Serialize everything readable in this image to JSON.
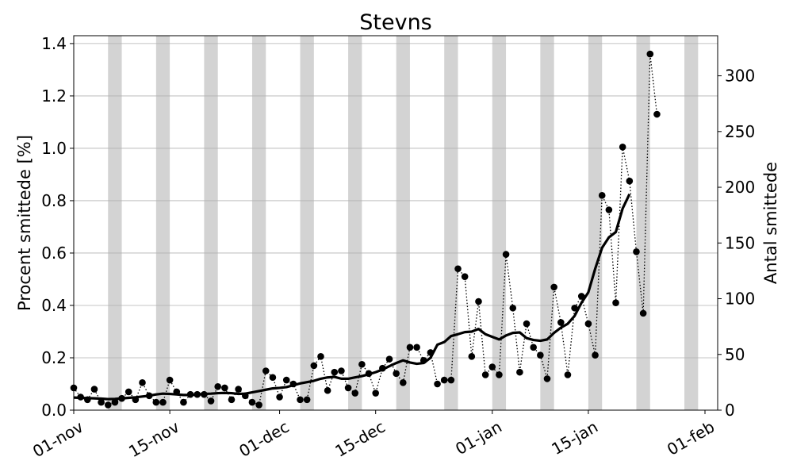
{
  "chart_data": {
    "type": "line",
    "title": "Stevns",
    "ylabel_left": "Procent smittede [%]",
    "ylabel_right": "Antal smittede",
    "x_range": [
      "2020-11-01",
      "2021-02-01"
    ],
    "x_ticks": [
      {
        "date": "2020-11-01",
        "label": "01-nov"
      },
      {
        "date": "2020-11-15",
        "label": "15-nov"
      },
      {
        "date": "2020-12-01",
        "label": "01-dec"
      },
      {
        "date": "2020-12-15",
        "label": "15-dec"
      },
      {
        "date": "2021-01-01",
        "label": "01-jan"
      },
      {
        "date": "2021-01-15",
        "label": "15-jan"
      },
      {
        "date": "2021-02-01",
        "label": "01-feb"
      }
    ],
    "ylim_left": [
      0,
      1.43
    ],
    "yticks_left": [
      "0.0",
      "0.2",
      "0.4",
      "0.6",
      "0.8",
      "1.0",
      "1.2",
      "1.4"
    ],
    "ylim_right": [
      0,
      336
    ],
    "yticks_right": [
      "0",
      "50",
      "100",
      "150",
      "200",
      "250",
      "300"
    ],
    "grid": "horizontal",
    "weekend_shading": [
      "2020-11-06",
      "2020-11-13",
      "2020-11-20",
      "2020-11-27",
      "2020-12-04",
      "2020-12-11",
      "2020-12-18",
      "2020-12-25",
      "2021-01-01",
      "2021-01-08",
      "2021-01-15",
      "2021-01-22",
      "2021-01-29"
    ],
    "series": [
      {
        "style": "daily-dotted-markers",
        "x_start": "2020-11-01",
        "values": [
          0.085,
          0.05,
          0.04,
          0.08,
          0.03,
          0.02,
          0.03,
          0.045,
          0.07,
          0.04,
          0.105,
          0.055,
          0.03,
          0.03,
          0.115,
          0.07,
          0.03,
          0.06,
          0.06,
          0.06,
          0.035,
          0.09,
          0.085,
          0.04,
          0.08,
          0.055,
          0.03,
          0.02,
          0.15,
          0.125,
          0.05,
          0.115,
          0.1,
          0.04,
          0.04,
          0.17,
          0.205,
          0.075,
          0.145,
          0.15,
          0.085,
          0.065,
          0.175,
          0.14,
          0.065,
          0.16,
          0.195,
          0.14,
          0.105,
          0.24,
          0.24,
          0.19,
          0.22,
          0.1,
          0.115,
          0.115,
          0.54,
          0.51,
          0.205,
          0.415,
          0.135,
          0.165,
          0.135,
          0.595,
          0.39,
          0.145,
          0.33,
          0.24,
          0.21,
          0.12,
          0.47,
          0.335,
          0.135,
          0.39,
          0.435,
          0.33,
          0.21,
          0.82,
          0.765,
          0.41,
          1.005,
          0.875,
          0.605,
          0.37,
          1.36,
          1.13
        ]
      },
      {
        "style": "rolling-average-solid",
        "x_start": "2020-11-01",
        "values": [
          0.048,
          0.047,
          0.046,
          0.045,
          0.044,
          0.042,
          0.043,
          0.045,
          0.047,
          0.049,
          0.052,
          0.055,
          0.06,
          0.063,
          0.062,
          0.06,
          0.058,
          0.058,
          0.06,
          0.062,
          0.063,
          0.065,
          0.066,
          0.065,
          0.062,
          0.063,
          0.068,
          0.073,
          0.078,
          0.083,
          0.085,
          0.088,
          0.095,
          0.102,
          0.107,
          0.112,
          0.12,
          0.125,
          0.127,
          0.12,
          0.12,
          0.125,
          0.13,
          0.137,
          0.145,
          0.155,
          0.168,
          0.18,
          0.19,
          0.182,
          0.177,
          0.18,
          0.2,
          0.25,
          0.26,
          0.283,
          0.29,
          0.298,
          0.3,
          0.31,
          0.29,
          0.28,
          0.27,
          0.285,
          0.295,
          0.297,
          0.275,
          0.268,
          0.265,
          0.27,
          0.295,
          0.315,
          0.33,
          0.36,
          0.41,
          0.45,
          0.54,
          0.62,
          0.66,
          0.68,
          0.77,
          0.825
        ]
      }
    ]
  }
}
